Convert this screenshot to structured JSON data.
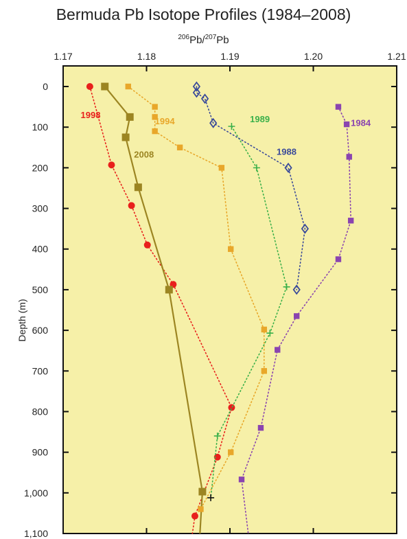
{
  "chart_data": {
    "type": "line",
    "title": "Bermuda Pb Isotope Profiles (1984–2008)",
    "xlabel_parts": {
      "m1": "206",
      "e1": "Pb/",
      "m2": "207",
      "e2": "Pb"
    },
    "ylabel": "Depth (m)",
    "xlim": [
      1.17,
      1.21
    ],
    "ylim": [
      0,
      1100
    ],
    "y_inverted": true,
    "x_axis_position": "top",
    "x_ticks": [
      1.17,
      1.18,
      1.19,
      1.2,
      1.21
    ],
    "x_tick_labels": [
      "1.17",
      "1.18",
      "1.19",
      "1.20",
      "1.21"
    ],
    "y_ticks": [
      0,
      100,
      200,
      300,
      400,
      500,
      600,
      700,
      800,
      900,
      1000,
      1100
    ],
    "y_tick_labels": [
      "0",
      "100",
      "200",
      "300",
      "400",
      "500",
      "600",
      "700",
      "800",
      "900",
      "1,000",
      "1,100"
    ],
    "background_color": "#f6f0a8",
    "series": [
      {
        "name": "1998",
        "color": "#e8201c",
        "marker": "circle",
        "line": "dotted",
        "label_pos": {
          "x": 1.1721,
          "y": 78
        },
        "points": [
          [
            1.1732,
            0
          ],
          [
            1.1758,
            193
          ],
          [
            1.1782,
            293
          ],
          [
            1.1801,
            390
          ],
          [
            1.1832,
            487
          ],
          [
            1.1902,
            790
          ],
          [
            1.1885,
            912
          ],
          [
            1.1858,
            1057
          ],
          [
            1.1855,
            1100
          ]
        ]
      },
      {
        "name": "2008",
        "color": "#9c8522",
        "marker": "square-large",
        "line": "solid",
        "label_pos": {
          "x": 1.1785,
          "y": 175
        },
        "points": [
          [
            1.175,
            0
          ],
          [
            1.178,
            75
          ],
          [
            1.1775,
            125
          ],
          [
            1.179,
            248
          ],
          [
            1.1827,
            500
          ],
          [
            1.1867,
            997
          ],
          [
            1.1864,
            1100
          ]
        ]
      },
      {
        "name": "1994",
        "color": "#e8a72a",
        "marker": "square",
        "line": "dotted",
        "label_pos": {
          "x": 1.181,
          "y": 93
        },
        "points": [
          [
            1.1778,
            0
          ],
          [
            1.181,
            50
          ],
          [
            1.181,
            75
          ],
          [
            1.181,
            110
          ],
          [
            1.184,
            150
          ],
          [
            1.189,
            200
          ],
          [
            1.1901,
            400
          ],
          [
            1.1941,
            598
          ],
          [
            1.1941,
            700
          ],
          [
            1.1901,
            900
          ],
          [
            1.1865,
            1040
          ]
        ]
      },
      {
        "name": "1989",
        "color": "#3bb04a",
        "marker": "plus",
        "line": "dotted",
        "label_pos": {
          "x": 1.1924,
          "y": 88
        },
        "points": [
          [
            1.1902,
            98
          ],
          [
            1.1932,
            200
          ],
          [
            1.1968,
            493
          ],
          [
            1.1948,
            607
          ],
          [
            1.1885,
            860
          ],
          [
            1.1877,
            1012
          ]
        ]
      },
      {
        "name": "1988",
        "color": "#3a4a9a",
        "marker": "diamond",
        "line": "dotted",
        "label_pos": {
          "x": 1.1956,
          "y": 168
        },
        "points": [
          [
            1.186,
            0
          ],
          [
            1.186,
            15
          ],
          [
            1.187,
            30
          ],
          [
            1.188,
            90
          ],
          [
            1.197,
            200
          ],
          [
            1.199,
            350
          ],
          [
            1.198,
            500
          ]
        ]
      },
      {
        "name": "1984",
        "color": "#8a44b0",
        "marker": "square",
        "line": "dotted",
        "label_pos": {
          "x": 1.2045,
          "y": 97
        },
        "points": [
          [
            1.203,
            50
          ],
          [
            1.204,
            93
          ],
          [
            1.2043,
            173
          ],
          [
            1.2045,
            330
          ],
          [
            1.203,
            425
          ],
          [
            1.198,
            565
          ],
          [
            1.1957,
            648
          ],
          [
            1.1937,
            840
          ],
          [
            1.1914,
            967
          ],
          [
            1.1922,
            1100
          ]
        ]
      }
    ]
  }
}
